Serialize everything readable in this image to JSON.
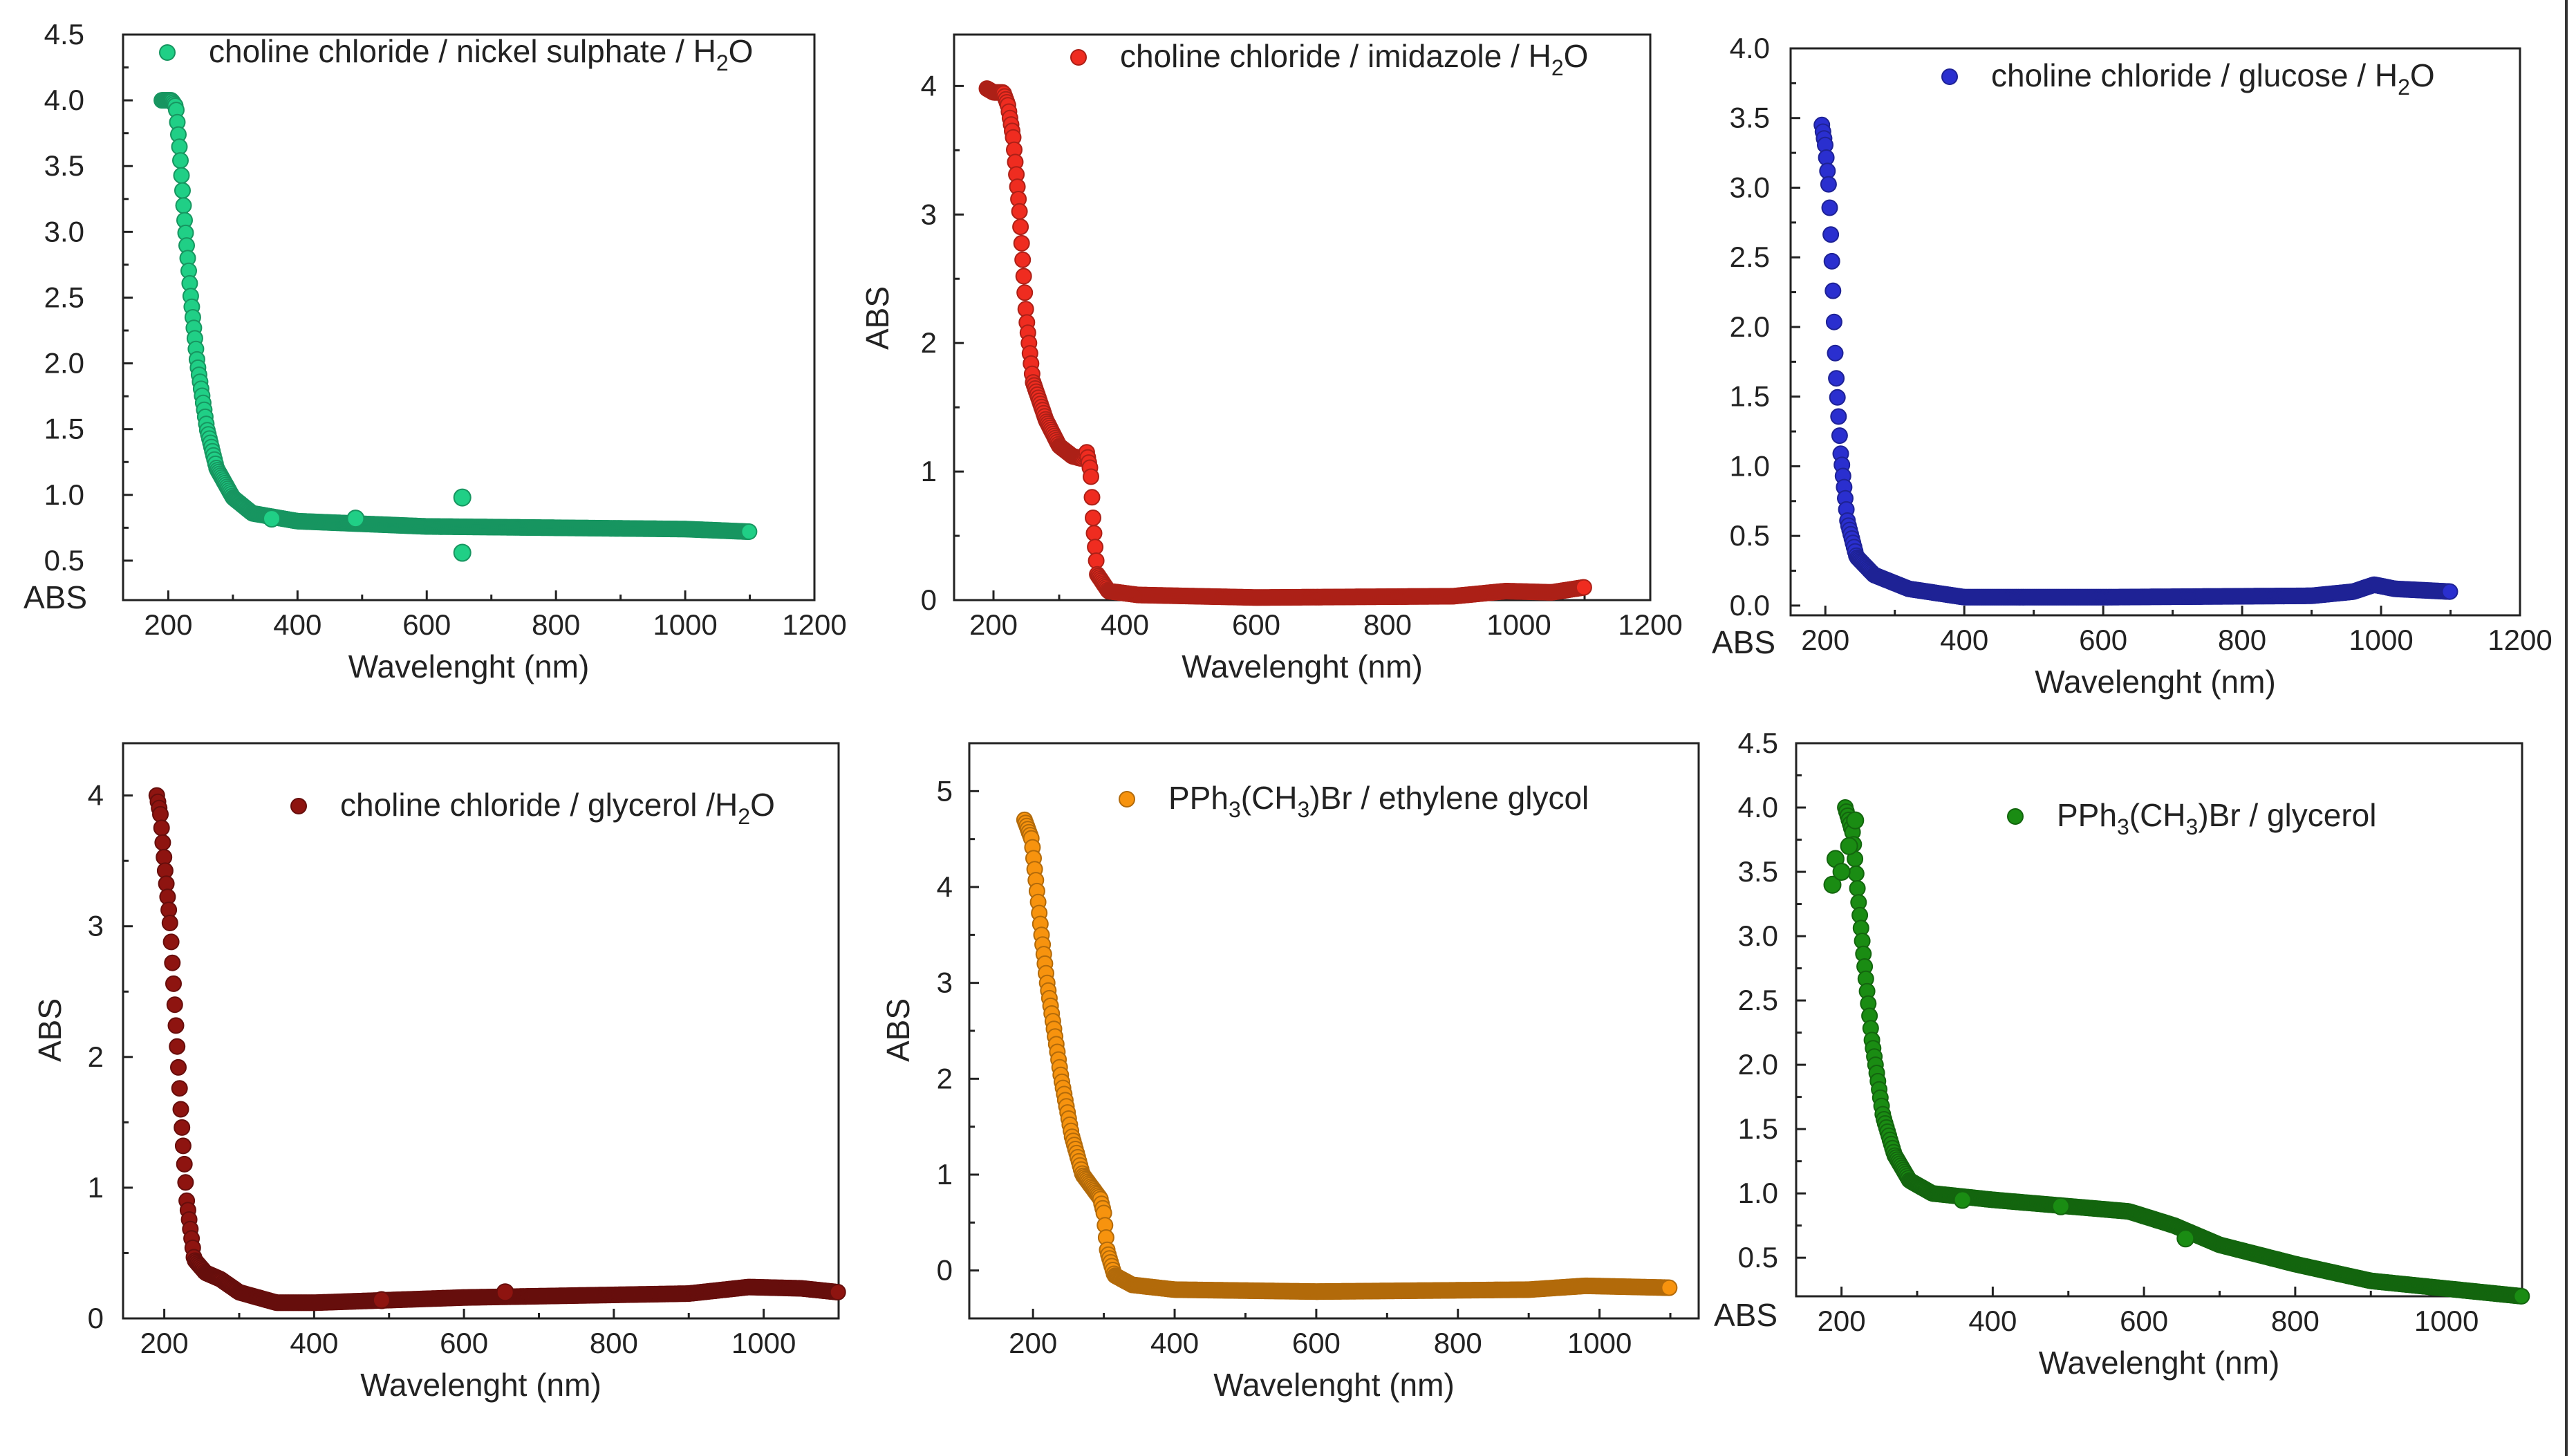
{
  "chart_data": [
    {
      "type": "scatter",
      "legend": {
        "parts": [
          [
            "choline chloride / nickel sulphate / H",
            "n"
          ],
          [
            "2",
            "s"
          ],
          [
            "O",
            "n"
          ]
        ]
      },
      "color": "#20cf86",
      "xlabel": "Wavelenght (nm)",
      "ylabel": "ABS",
      "xlim": [
        130,
        1200
      ],
      "ylim": [
        0.2,
        4.5
      ],
      "xticks": [
        200,
        400,
        600,
        800,
        1000,
        1200
      ],
      "yticks": [
        0.5,
        1.0,
        1.5,
        2.0,
        2.5,
        3.0,
        3.5,
        4.0,
        4.5
      ],
      "ytick_labels": [
        "0.5",
        "1.0",
        "1.5",
        "2.0",
        "2.5",
        "3.0",
        "3.5",
        "4.0",
        "4.5"
      ],
      "curve": [
        [
          190,
          4.0
        ],
        [
          205,
          4.0
        ],
        [
          212,
          3.95
        ],
        [
          218,
          3.6
        ],
        [
          225,
          3.1
        ],
        [
          235,
          2.5
        ],
        [
          245,
          2.0
        ],
        [
          260,
          1.5
        ],
        [
          275,
          1.2
        ],
        [
          300,
          0.98
        ],
        [
          330,
          0.86
        ],
        [
          400,
          0.8
        ],
        [
          500,
          0.78
        ],
        [
          600,
          0.76
        ],
        [
          800,
          0.75
        ],
        [
          1000,
          0.74
        ],
        [
          1100,
          0.72
        ]
      ],
      "outliers": [
        [
          655,
          0.98
        ],
        [
          655,
          0.56
        ],
        [
          490,
          0.82
        ],
        [
          360,
          0.82
        ]
      ]
    },
    {
      "type": "scatter",
      "legend": {
        "parts": [
          [
            "choline chloride / imidazole / H",
            "n"
          ],
          [
            "2",
            "s"
          ],
          [
            "O",
            "n"
          ]
        ]
      },
      "color": "#ef2c20",
      "xlabel": "Wavelenght (nm)",
      "ylabel": "ABS",
      "xlim": [
        140,
        1200
      ],
      "ylim": [
        0,
        4.4
      ],
      "xticks": [
        200,
        400,
        600,
        800,
        1000,
        1200
      ],
      "yticks": [
        0,
        1,
        2,
        3,
        4
      ],
      "ytick_labels": [
        "0",
        "1",
        "2",
        "3",
        "4"
      ],
      "curve": [
        [
          190,
          3.98
        ],
        [
          200,
          3.95
        ],
        [
          215,
          3.95
        ],
        [
          222,
          3.85
        ],
        [
          230,
          3.6
        ],
        [
          240,
          3.0
        ],
        [
          250,
          2.2
        ],
        [
          260,
          1.7
        ],
        [
          280,
          1.4
        ],
        [
          300,
          1.2
        ],
        [
          320,
          1.12
        ],
        [
          335,
          1.1
        ],
        [
          342,
          1.15
        ],
        [
          348,
          1.0
        ],
        [
          352,
          0.6
        ],
        [
          358,
          0.2
        ],
        [
          375,
          0.07
        ],
        [
          420,
          0.04
        ],
        [
          600,
          0.02
        ],
        [
          900,
          0.03
        ],
        [
          980,
          0.07
        ],
        [
          1050,
          0.06
        ],
        [
          1100,
          0.1
        ]
      ],
      "outliers": []
    },
    {
      "type": "scatter",
      "legend": {
        "parts": [
          [
            "choline chloride / glucose / H",
            "n"
          ],
          [
            "2",
            "s"
          ],
          [
            "O",
            "n"
          ]
        ]
      },
      "color": "#2a2fcf",
      "xlabel": "Wavelenght (nm)",
      "ylabel": "ABS",
      "xlim": [
        150,
        1200
      ],
      "ylim": [
        -0.07,
        4.0
      ],
      "xticks": [
        200,
        400,
        600,
        800,
        1000,
        1200
      ],
      "yticks": [
        0.0,
        0.5,
        1.0,
        1.5,
        2.0,
        2.5,
        3.0,
        3.5,
        4.0
      ],
      "ytick_labels": [
        "0.0",
        "0.5",
        "1.0",
        "1.5",
        "2.0",
        "2.5",
        "3.0",
        "3.5",
        "4.0"
      ],
      "curve": [
        [
          195,
          3.45
        ],
        [
          200,
          3.3
        ],
        [
          205,
          3.0
        ],
        [
          210,
          2.4
        ],
        [
          215,
          1.7
        ],
        [
          222,
          1.1
        ],
        [
          232,
          0.6
        ],
        [
          245,
          0.35
        ],
        [
          270,
          0.22
        ],
        [
          320,
          0.12
        ],
        [
          400,
          0.06
        ],
        [
          600,
          0.06
        ],
        [
          900,
          0.07
        ],
        [
          960,
          0.1
        ],
        [
          990,
          0.15
        ],
        [
          1020,
          0.12
        ],
        [
          1100,
          0.1
        ]
      ],
      "outliers": []
    },
    {
      "type": "scatter",
      "legend": {
        "parts": [
          [
            "choline chloride / glycerol /H",
            "n"
          ],
          [
            "2",
            "s"
          ],
          [
            "O",
            "n"
          ]
        ]
      },
      "color": "#8e1410",
      "xlabel": "Wavelenght (nm)",
      "ylabel": "ABS",
      "xlim": [
        145,
        1100
      ],
      "ylim": [
        0,
        4.4
      ],
      "xticks": [
        200,
        400,
        600,
        800,
        1000
      ],
      "yticks": [
        0,
        1,
        2,
        3,
        4
      ],
      "ytick_labels": [
        "0",
        "1",
        "2",
        "3",
        "4"
      ],
      "curve": [
        [
          190,
          4.0
        ],
        [
          195,
          3.85
        ],
        [
          200,
          3.5
        ],
        [
          208,
          3.0
        ],
        [
          215,
          2.3
        ],
        [
          222,
          1.6
        ],
        [
          230,
          0.9
        ],
        [
          240,
          0.45
        ],
        [
          255,
          0.35
        ],
        [
          275,
          0.3
        ],
        [
          300,
          0.2
        ],
        [
          350,
          0.12
        ],
        [
          400,
          0.12
        ],
        [
          600,
          0.16
        ],
        [
          900,
          0.19
        ],
        [
          980,
          0.24
        ],
        [
          1050,
          0.23
        ],
        [
          1100,
          0.2
        ]
      ],
      "outliers": [
        [
          655,
          0.2
        ],
        [
          490,
          0.14
        ]
      ]
    },
    {
      "type": "scatter",
      "legend": {
        "parts": [
          [
            "PPh",
            "n"
          ],
          [
            "3",
            "s"
          ],
          [
            "(CH",
            "n"
          ],
          [
            "3",
            "s"
          ],
          [
            ")Br / ethylene glycol",
            "n"
          ]
        ]
      },
      "color": "#f7930e",
      "xlabel": "Wavelenght (nm)",
      "ylabel": "ABS",
      "xlim": [
        110,
        1140
      ],
      "ylim": [
        -0.5,
        5.5
      ],
      "xticks": [
        200,
        400,
        600,
        800,
        1000
      ],
      "yticks": [
        0,
        1,
        2,
        3,
        4,
        5
      ],
      "ytick_labels": [
        "0",
        "1",
        "2",
        "3",
        "4",
        "5"
      ],
      "curve": [
        [
          188,
          4.7
        ],
        [
          198,
          4.5
        ],
        [
          205,
          4.0
        ],
        [
          212,
          3.5
        ],
        [
          220,
          3.0
        ],
        [
          230,
          2.5
        ],
        [
          240,
          2.0
        ],
        [
          255,
          1.4
        ],
        [
          270,
          1.0
        ],
        [
          285,
          0.85
        ],
        [
          295,
          0.75
        ],
        [
          300,
          0.6
        ],
        [
          305,
          0.2
        ],
        [
          315,
          -0.05
        ],
        [
          340,
          -0.15
        ],
        [
          400,
          -0.2
        ],
        [
          600,
          -0.22
        ],
        [
          900,
          -0.2
        ],
        [
          980,
          -0.16
        ],
        [
          1100,
          -0.18
        ]
      ],
      "outliers": []
    },
    {
      "type": "scatter",
      "legend": {
        "parts": [
          [
            "PPh",
            "n"
          ],
          [
            "3",
            "s"
          ],
          [
            "(CH",
            "n"
          ],
          [
            "3",
            "s"
          ],
          [
            ")Br / glycerol",
            "n"
          ]
        ]
      },
      "color": "#1a8c13",
      "xlabel": "Wavelenght (nm)",
      "ylabel": "ABS",
      "xlim": [
        140,
        1100
      ],
      "ylim": [
        0.2,
        4.5
      ],
      "xticks": [
        200,
        400,
        600,
        800,
        1000
      ],
      "yticks": [
        0.5,
        1.0,
        1.5,
        2.0,
        2.5,
        3.0,
        3.5,
        4.0,
        4.5
      ],
      "ytick_labels": [
        "0.5",
        "1.0",
        "1.5",
        "2.0",
        "2.5",
        "3.0",
        "3.5",
        "4.0",
        "4.5"
      ],
      "curve": [
        [
          205,
          4.0
        ],
        [
          215,
          3.8
        ],
        [
          222,
          3.3
        ],
        [
          230,
          2.8
        ],
        [
          240,
          2.2
        ],
        [
          255,
          1.6
        ],
        [
          270,
          1.3
        ],
        [
          290,
          1.1
        ],
        [
          320,
          1.0
        ],
        [
          400,
          0.95
        ],
        [
          500,
          0.9
        ],
        [
          580,
          0.86
        ],
        [
          640,
          0.75
        ],
        [
          700,
          0.6
        ],
        [
          800,
          0.45
        ],
        [
          900,
          0.32
        ],
        [
          1000,
          0.26
        ],
        [
          1100,
          0.2
        ]
      ],
      "outliers": [
        [
          188,
          3.4
        ],
        [
          192,
          3.6
        ],
        [
          200,
          3.5
        ],
        [
          210,
          3.7
        ],
        [
          218,
          3.9
        ],
        [
          655,
          0.65
        ],
        [
          360,
          0.95
        ],
        [
          490,
          0.9
        ]
      ]
    }
  ]
}
